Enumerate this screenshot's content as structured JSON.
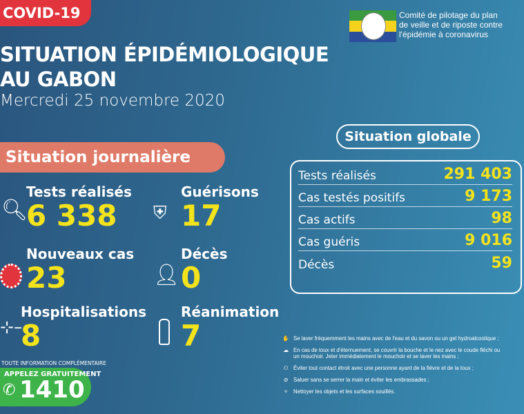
{
  "badge": "COVID-19",
  "title_line1": "SITUATION ÉPIDÉMIOLOGIQUE",
  "title_line2": "AU GABON",
  "date": "Mercredi 25 novembre 2020",
  "daily": {
    "title": "Situation journalière",
    "items": [
      {
        "label": "Tests réalisés",
        "value": "6 338",
        "icon": "magnifier-icon"
      },
      {
        "label": "Guérisons",
        "value": "17",
        "icon": "shield-cross-icon"
      },
      {
        "label": "Nouveaux cas",
        "value": "23",
        "icon": "virus-icon"
      },
      {
        "label": "Décès",
        "value": "0",
        "icon": "person-cross-icon"
      },
      {
        "label": "Hospitalisations",
        "value": "8",
        "icon": "hospital-bed-icon"
      },
      {
        "label": "Réanimation",
        "value": "7",
        "icon": "oxygen-tank-icon"
      }
    ]
  },
  "contact": {
    "info": "TOUTE INFORMATION COMPLÉMENTAIRE",
    "call": "APPELEZ GRATUITEMENT",
    "number": "1410"
  },
  "org": {
    "line1": "Comité de pilotage du plan",
    "line2": "de veille et de riposte contre",
    "line3": "l'épidémie à coronavirus",
    "flag_colors": [
      "#3a9a3f",
      "#f5d31c",
      "#2a4e9a"
    ]
  },
  "global": {
    "title": "Situation globale",
    "rows": [
      {
        "label": "Tests réalisés",
        "value": "291 403"
      },
      {
        "label": "Cas testés positifs",
        "value": "9 173"
      },
      {
        "label": "Cas actifs",
        "value": "98"
      },
      {
        "label": "Cas guéris",
        "value": "9 016"
      },
      {
        "label": "Décès",
        "value": "59"
      }
    ]
  },
  "tips": [
    {
      "text": "Se laver fréquemment les mains avec de l'eau et du savon ou un gel hydroalcoolique ;",
      "icon": "handwash-icon"
    },
    {
      "text": "En cas de toux et d'éternuement, se couvrir la bouche et le nez avec le coude fléchi ou",
      "text2": "un mouchoir. Jeter immédiatement le mouchoir et se laver les mains ;",
      "icon": "sneeze-icon"
    },
    {
      "text": "Éviter tout contact étroit avec une personne ayant de la fièvre et de la toux ;",
      "icon": "distance-icon"
    },
    {
      "text": "Saluer sans se serrer la main et éviter les embrassades ;",
      "icon": "no-handshake-icon"
    },
    {
      "text": "Nettoyer les objets et les surfaces souillés.",
      "icon": "cleaning-icon"
    }
  ],
  "colors": {
    "red": "#e2343c",
    "salmon": "#e07a68",
    "yellow": "#f3e31c",
    "green": "#3db34a"
  }
}
